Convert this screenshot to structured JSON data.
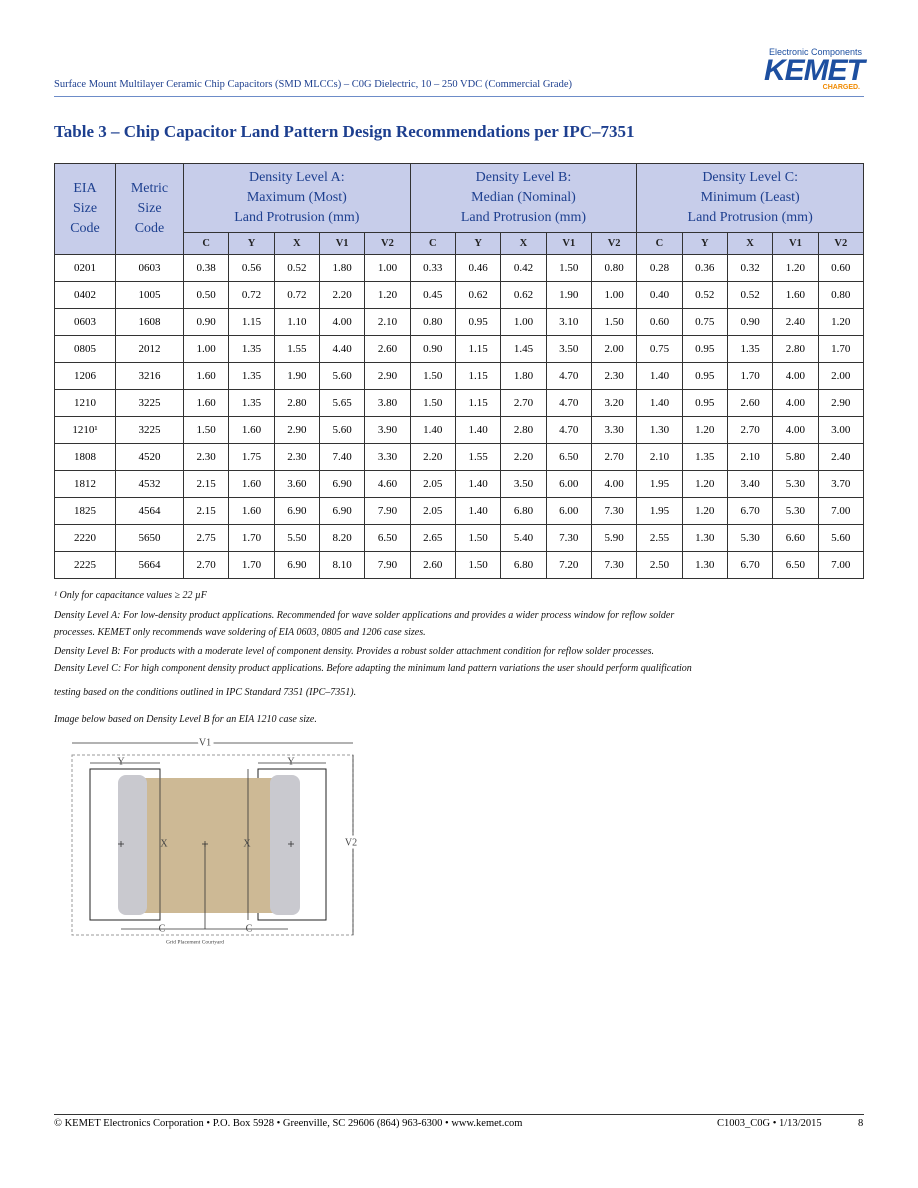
{
  "header": {
    "brand_small": "Electronic Components",
    "brand": "KEMET",
    "tagline": "CHARGED.",
    "doc_title": "Surface Mount Multilayer Ceramic Chip Capacitors (SMD MLCCs) – C0G Dielectric, 10 – 250 VDC (Commercial Grade)"
  },
  "table": {
    "title": "Table 3 – Chip Capacitor Land Pattern Design Recommendations per IPC–7351",
    "col_heads": [
      [
        "EIA",
        "Size",
        "Code"
      ],
      [
        "Metric",
        "Size",
        "Code"
      ]
    ],
    "groups": [
      [
        "Density Level A:",
        "Maximum (Most)",
        "Land Protrusion (mm)"
      ],
      [
        "Density Level B:",
        "Median (Nominal)",
        "Land Protrusion (mm)"
      ],
      [
        "Density Level C:",
        "Minimum (Least)",
        "Land Protrusion (mm)"
      ]
    ],
    "subheads": [
      "C",
      "Y",
      "X",
      "V1",
      "V2"
    ],
    "rows": [
      [
        "0201",
        "0603",
        "0.38",
        "0.56",
        "0.52",
        "1.80",
        "1.00",
        "0.33",
        "0.46",
        "0.42",
        "1.50",
        "0.80",
        "0.28",
        "0.36",
        "0.32",
        "1.20",
        "0.60"
      ],
      [
        "0402",
        "1005",
        "0.50",
        "0.72",
        "0.72",
        "2.20",
        "1.20",
        "0.45",
        "0.62",
        "0.62",
        "1.90",
        "1.00",
        "0.40",
        "0.52",
        "0.52",
        "1.60",
        "0.80"
      ],
      [
        "0603",
        "1608",
        "0.90",
        "1.15",
        "1.10",
        "4.00",
        "2.10",
        "0.80",
        "0.95",
        "1.00",
        "3.10",
        "1.50",
        "0.60",
        "0.75",
        "0.90",
        "2.40",
        "1.20"
      ],
      [
        "0805",
        "2012",
        "1.00",
        "1.35",
        "1.55",
        "4.40",
        "2.60",
        "0.90",
        "1.15",
        "1.45",
        "3.50",
        "2.00",
        "0.75",
        "0.95",
        "1.35",
        "2.80",
        "1.70"
      ],
      [
        "1206",
        "3216",
        "1.60",
        "1.35",
        "1.90",
        "5.60",
        "2.90",
        "1.50",
        "1.15",
        "1.80",
        "4.70",
        "2.30",
        "1.40",
        "0.95",
        "1.70",
        "4.00",
        "2.00"
      ],
      [
        "1210",
        "3225",
        "1.60",
        "1.35",
        "2.80",
        "5.65",
        "3.80",
        "1.50",
        "1.15",
        "2.70",
        "4.70",
        "3.20",
        "1.40",
        "0.95",
        "2.60",
        "4.00",
        "2.90"
      ],
      [
        "1210¹",
        "3225",
        "1.50",
        "1.60",
        "2.90",
        "5.60",
        "3.90",
        "1.40",
        "1.40",
        "2.80",
        "4.70",
        "3.30",
        "1.30",
        "1.20",
        "2.70",
        "4.00",
        "3.00"
      ],
      [
        "1808",
        "4520",
        "2.30",
        "1.75",
        "2.30",
        "7.40",
        "3.30",
        "2.20",
        "1.55",
        "2.20",
        "6.50",
        "2.70",
        "2.10",
        "1.35",
        "2.10",
        "5.80",
        "2.40"
      ],
      [
        "1812",
        "4532",
        "2.15",
        "1.60",
        "3.60",
        "6.90",
        "4.60",
        "2.05",
        "1.40",
        "3.50",
        "6.00",
        "4.00",
        "1.95",
        "1.20",
        "3.40",
        "5.30",
        "3.70"
      ],
      [
        "1825",
        "4564",
        "2.15",
        "1.60",
        "6.90",
        "6.90",
        "7.90",
        "2.05",
        "1.40",
        "6.80",
        "6.00",
        "7.30",
        "1.95",
        "1.20",
        "6.70",
        "5.30",
        "7.00"
      ],
      [
        "2220",
        "5650",
        "2.75",
        "1.70",
        "5.50",
        "8.20",
        "6.50",
        "2.65",
        "1.50",
        "5.40",
        "7.30",
        "5.90",
        "2.55",
        "1.30",
        "5.30",
        "6.60",
        "5.60"
      ],
      [
        "2225",
        "5664",
        "2.70",
        "1.70",
        "6.90",
        "8.10",
        "7.90",
        "2.60",
        "1.50",
        "6.80",
        "7.20",
        "7.30",
        "2.50",
        "1.30",
        "6.70",
        "6.50",
        "7.00"
      ]
    ]
  },
  "notes": [
    "¹ Only for capacitance values ≥ 22 µF",
    "Density Level A: For low-density product applications. Recommended for wave solder applications and provides a wider process window for reflow solder",
    "processes. KEMET only recommends wave soldering of EIA 0603, 0805 and 1206 case sizes.",
    "Density Level B: For products with a moderate level of component density. Provides a robust solder attachment condition for reflow solder processes.",
    "Density Level C: For high component density product applications. Before adapting the minimum land pattern variations the user should perform qualification",
    "testing based on the conditions outlined in IPC Standard 7351 (IPC–7351).",
    "Image below based on Density Level B for an EIA 1210 case size."
  ],
  "diagram": {
    "v1": "V1",
    "y_left": "Y",
    "y_right": "Y",
    "x_left": "X",
    "x_right": "X",
    "v2": "V2",
    "c_left": "C",
    "c_right": "C",
    "courtyard": "Grid Placement Courtyard"
  },
  "footer": {
    "left": "© KEMET Electronics Corporation • P.O. Box 5928 • Greenville, SC 29606 (864) 963-6300 • www.kemet.com",
    "right": "C1003_C0G • 1/13/2015",
    "page": "8"
  }
}
